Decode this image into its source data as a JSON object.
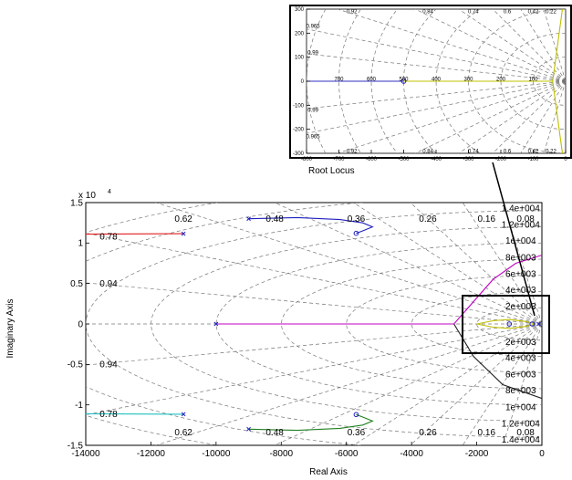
{
  "chart_data": [
    {
      "type": "line",
      "title": "",
      "xlabel": "Real Axis",
      "ylabel": "Imaginary Axis",
      "xlim": [
        -14000,
        0
      ],
      "ylim": [
        -15000,
        15000
      ],
      "x_ticks": [
        "-14000",
        "-12000",
        "-10000",
        "-8000",
        "-6000",
        "-4000",
        "-2000",
        "0"
      ],
      "y_ticks": [
        "-1.5",
        "-1",
        "-0.5",
        "0",
        "0.5",
        "1",
        "1.5"
      ],
      "y_exponent": "x 10",
      "y_exponent_power": "4",
      "grid": true,
      "damping_labels": [
        {
          "text": "0.62",
          "x": -11000,
          "y": 13000
        },
        {
          "text": "0.48",
          "x": -8200,
          "y": 13000
        },
        {
          "text": "0.36",
          "x": -5700,
          "y": 13000
        },
        {
          "text": "0.26",
          "x": -3500,
          "y": 13000
        },
        {
          "text": "0.16",
          "x": -1700,
          "y": 13000
        },
        {
          "text": "0.08",
          "x": -500,
          "y": 13000
        },
        {
          "text": "0.78",
          "x": -13300,
          "y": 10800
        },
        {
          "text": "0.94",
          "x": -13300,
          "y": 5000
        },
        {
          "text": "0.94",
          "x": -13300,
          "y": -5000
        },
        {
          "text": "0.78",
          "x": -13300,
          "y": -11100
        },
        {
          "text": "0.62",
          "x": -11000,
          "y": -13400
        },
        {
          "text": "0.48",
          "x": -8200,
          "y": -13400
        },
        {
          "text": "0.36",
          "x": -5700,
          "y": -13400
        },
        {
          "text": "0.26",
          "x": -3500,
          "y": -13400
        },
        {
          "text": "0.16",
          "x": -1700,
          "y": -13400
        },
        {
          "text": "0.08",
          "x": -500,
          "y": -13400
        }
      ],
      "frequency_labels": [
        {
          "text": "1.4e+004",
          "x": -650,
          "y": 14300
        },
        {
          "text": "1.2e+004",
          "x": -650,
          "y": 12300
        },
        {
          "text": "1e+004",
          "x": -650,
          "y": 10300
        },
        {
          "text": "8e+003",
          "x": -650,
          "y": 8200
        },
        {
          "text": "6e+003",
          "x": -650,
          "y": 6200
        },
        {
          "text": "4e+003",
          "x": -650,
          "y": 4200
        },
        {
          "text": "2e+003",
          "x": -650,
          "y": 2200
        },
        {
          "text": "2e+003",
          "x": -650,
          "y": -2200
        },
        {
          "text": "4e+003",
          "x": -650,
          "y": -4200
        },
        {
          "text": "6e+003",
          "x": -650,
          "y": -6200
        },
        {
          "text": "8e+003",
          "x": -650,
          "y": -8200
        },
        {
          "text": "1e+004",
          "x": -650,
          "y": -10300
        },
        {
          "text": "1.2e+004",
          "x": -650,
          "y": -12300
        },
        {
          "text": "1.4e+004",
          "x": -650,
          "y": -14300
        }
      ],
      "series": [
        {
          "color": "#e02020",
          "points": [
            [
              -14000,
              11100
            ],
            [
              -12500,
              11130
            ],
            [
              -11000,
              11150
            ]
          ]
        },
        {
          "color": "#20c0c0",
          "points": [
            [
              -14000,
              -11100
            ],
            [
              -12500,
              -11130
            ],
            [
              -11000,
              -11150
            ]
          ]
        },
        {
          "color": "#2020c0",
          "points": [
            [
              -9000,
              13000
            ],
            [
              -7500,
              13150
            ],
            [
              -6200,
              12900
            ],
            [
              -5500,
              12500
            ],
            [
              -5200,
              12000
            ],
            [
              -5500,
              11500
            ],
            [
              -5700,
              11200
            ]
          ]
        },
        {
          "color": "#208020",
          "points": [
            [
              -9000,
              -13000
            ],
            [
              -7500,
              -13150
            ],
            [
              -6200,
              -12900
            ],
            [
              -5500,
              -12500
            ],
            [
              -5200,
              -12000
            ],
            [
              -5500,
              -11500
            ],
            [
              -5700,
              -11200
            ]
          ]
        },
        {
          "color": "#3030c0",
          "points": [
            [
              -10000,
              0
            ],
            [
              -6000,
              0
            ],
            [
              -2700,
              0
            ]
          ]
        },
        {
          "color": "#c000c0",
          "points": [
            [
              -10000,
              0
            ],
            [
              -2700,
              0
            ],
            [
              -1500,
              5500
            ],
            [
              -800,
              7500
            ],
            [
              0,
              8500
            ]
          ]
        },
        {
          "color": "#202020",
          "points": [
            [
              -2700,
              0
            ],
            [
              -2100,
              -4000
            ],
            [
              -1200,
              -7500
            ],
            [
              0,
              -9200
            ]
          ]
        },
        {
          "color": "#c0c000",
          "points": [
            [
              -2000,
              0
            ],
            [
              -1500,
              400
            ],
            [
              -1000,
              550
            ],
            [
              -500,
              300
            ],
            [
              -200,
              0
            ],
            [
              -500,
              -300
            ],
            [
              -1000,
              -550
            ],
            [
              -1500,
              -400
            ],
            [
              -2000,
              0
            ]
          ]
        }
      ],
      "open_zeros": [
        [
          -5700,
          11200
        ],
        [
          -5700,
          -11200
        ],
        [
          -1000,
          0
        ],
        [
          -300,
          0
        ]
      ],
      "poles": [
        [
          -11000,
          11150
        ],
        [
          -11000,
          -11150
        ],
        [
          -9000,
          13000
        ],
        [
          -9000,
          -13000
        ],
        [
          -10000,
          0
        ],
        [
          -100,
          0
        ]
      ]
    },
    {
      "type": "line",
      "title": "Root Locus",
      "xlabel": "",
      "ylabel": "",
      "xlim": [
        -800,
        0
      ],
      "ylim": [
        -300,
        300
      ],
      "x_ticks": [
        "-800",
        "-700",
        "-600",
        "-500",
        "-400",
        "-300",
        "-200",
        "-100",
        "0"
      ],
      "y_ticks": [
        "300",
        "200",
        "100",
        "0",
        "-100",
        "-200",
        "-300"
      ],
      "grid": true,
      "damping_labels": [
        {
          "text": "0.92",
          "x": -660,
          "y": 290
        },
        {
          "text": "0.84",
          "x": -425,
          "y": 290
        },
        {
          "text": "0.74",
          "x": -285,
          "y": 290
        },
        {
          "text": "0.6",
          "x": -180,
          "y": 290
        },
        {
          "text": "0.42",
          "x": -100,
          "y": 290
        },
        {
          "text": "0.22",
          "x": -45,
          "y": 290
        },
        {
          "text": "0.965",
          "x": -780,
          "y": 230
        },
        {
          "text": "0.99",
          "x": -780,
          "y": 120
        },
        {
          "text": "0.99",
          "x": -780,
          "y": -120
        },
        {
          "text": "0.965",
          "x": -780,
          "y": -230
        },
        {
          "text": "0.92",
          "x": -660,
          "y": -290
        },
        {
          "text": "0.84",
          "x": -425,
          "y": -290
        },
        {
          "text": "0.74",
          "x": -285,
          "y": -290
        },
        {
          "text": "0.6",
          "x": -180,
          "y": -290
        },
        {
          "text": "0.42",
          "x": -100,
          "y": -290
        },
        {
          "text": "0.22",
          "x": -45,
          "y": -290
        }
      ],
      "frequency_labels": [
        {
          "text": "700",
          "x": -700,
          "y": 10
        },
        {
          "text": "600",
          "x": -600,
          "y": 10
        },
        {
          "text": "500",
          "x": -500,
          "y": 10
        },
        {
          "text": "400",
          "x": -400,
          "y": 10
        },
        {
          "text": "300",
          "x": -300,
          "y": 10
        },
        {
          "text": "200",
          "x": -200,
          "y": 10
        },
        {
          "text": "100",
          "x": -100,
          "y": 10
        }
      ],
      "series": [
        {
          "color": "#c0c000",
          "points": [
            [
              -800,
              0
            ],
            [
              -500,
              0
            ],
            [
              -100,
              0
            ],
            [
              -40,
              0
            ]
          ]
        },
        {
          "color": "#c0c000",
          "points": [
            [
              -40,
              0
            ],
            [
              -30,
              100
            ],
            [
              -20,
              200
            ],
            [
              -10,
              300
            ]
          ]
        },
        {
          "color": "#c0c000",
          "points": [
            [
              -40,
              0
            ],
            [
              -30,
              -100
            ],
            [
              -20,
              -200
            ],
            [
              -10,
              -300
            ]
          ]
        },
        {
          "color": "#3030c0",
          "points": [
            [
              -800,
              0
            ],
            [
              -500,
              0
            ]
          ]
        }
      ],
      "open_zeros": [
        [
          -500,
          0
        ]
      ],
      "poles": []
    }
  ]
}
